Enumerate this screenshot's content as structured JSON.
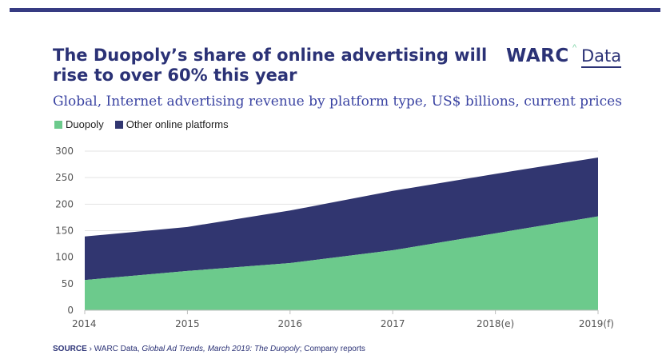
{
  "header": {
    "title": "The Duopoly’s share of online advertising will rise to over 60% this year",
    "brand_primary": "WARC",
    "brand_mark": "^",
    "brand_secondary": "Data",
    "subtitle": "Global, Internet advertising revenue by platform type, US$ billions, current prices"
  },
  "colors": {
    "duopoly": "#6cca8c",
    "other": "#313670",
    "accent": "#2b3276"
  },
  "source": {
    "label": "SOURCE",
    "separator": "›",
    "text_plain_1": "WARC Data, ",
    "text_italic": "Global Ad Trends, March 2019: The Duopoly",
    "text_plain_2": "; Company reports"
  },
  "chart_data": {
    "type": "area",
    "stacked": true,
    "title": "The Duopoly’s share of online advertising will rise to over 60% this year",
    "subtitle": "Global, Internet advertising revenue by platform type, US$ billions, current prices",
    "xlabel": "",
    "ylabel": "",
    "categories": [
      "2014",
      "2015",
      "2016",
      "2017",
      "2018(e)",
      "2019(f)"
    ],
    "ylim": [
      0,
      300
    ],
    "yticks": [
      0,
      50,
      100,
      150,
      200,
      250,
      300
    ],
    "grid": true,
    "legend_position": "top-left",
    "series": [
      {
        "name": "Duopoly",
        "values": [
          57,
          74,
          89,
          113,
          145,
          177
        ],
        "color": "#6cca8c"
      },
      {
        "name": "Other online platforms",
        "values": [
          82,
          83,
          99,
          112,
          112,
          111
        ],
        "color": "#313670"
      }
    ]
  }
}
